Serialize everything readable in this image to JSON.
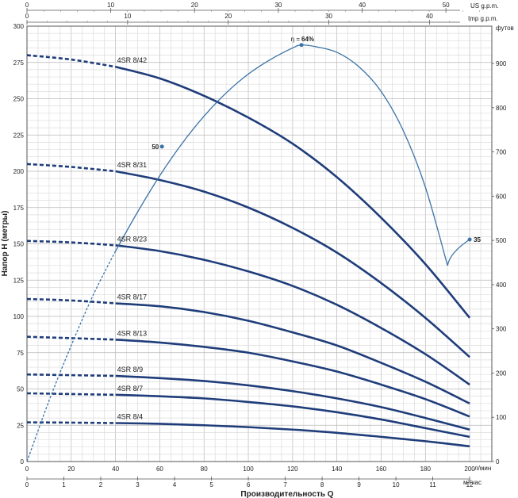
{
  "chart_data": {
    "type": "line",
    "title": "",
    "xlabel": "Производительность Q",
    "ylabel": "Напор Н (метры)",
    "x_unit_primary": "л/мин",
    "x_unit_secondary": "м³/час",
    "x_unit_top_us": "US g.p.m.",
    "x_unit_top_imp": "Imp g.p.m.",
    "y_unit_right": "футов",
    "xlim": [
      0,
      200
    ],
    "ylim": [
      0,
      300
    ],
    "x_ticks_lmin": [
      "0",
      "20",
      "40",
      "60",
      "80",
      "100",
      "120",
      "140",
      "160",
      "180",
      "200"
    ],
    "x_ticks_m3h": [
      "0",
      "1",
      "2",
      "3",
      "4",
      "5",
      "6",
      "7",
      "8",
      "9",
      "10",
      "11",
      "12"
    ],
    "x_ticks_us_gpm": [
      "0",
      "10",
      "20",
      "30",
      "40",
      "50"
    ],
    "x_ticks_imp_gpm": [
      "0",
      "10",
      "20",
      "30",
      "40"
    ],
    "y_ticks_m": [
      "0",
      "25",
      "50",
      "75",
      "100",
      "125",
      "150",
      "175",
      "200",
      "225",
      "250",
      "275",
      "300"
    ],
    "y_ticks_ft": [
      "0",
      "100",
      "200",
      "300",
      "400",
      "500",
      "600",
      "700",
      "800",
      "900"
    ],
    "grid": true,
    "series": [
      {
        "name": "4SR 8/42",
        "dashed_until_x": 40,
        "x": [
          0,
          20,
          40,
          60,
          80,
          100,
          120,
          140,
          160,
          180,
          200
        ],
        "y": [
          280,
          277,
          272,
          264,
          252,
          237,
          219,
          196,
          168,
          136,
          99
        ]
      },
      {
        "name": "4SR 8/31",
        "dashed_until_x": 40,
        "x": [
          0,
          20,
          40,
          60,
          80,
          100,
          120,
          140,
          160,
          180,
          200
        ],
        "y": [
          205,
          203,
          200,
          194,
          186,
          175,
          161,
          144,
          123,
          99,
          72
        ]
      },
      {
        "name": "4SR 8/23",
        "dashed_until_x": 40,
        "x": [
          0,
          20,
          40,
          60,
          80,
          100,
          120,
          140,
          160,
          180,
          200
        ],
        "y": [
          152,
          151,
          149,
          145,
          139,
          131,
          121,
          108,
          92,
          74,
          53
        ]
      },
      {
        "name": "4SR 8/17",
        "dashed_until_x": 40,
        "x": [
          0,
          20,
          40,
          60,
          80,
          100,
          120,
          140,
          160,
          180,
          200
        ],
        "y": [
          112,
          111,
          109,
          107,
          103,
          97,
          89,
          80,
          68,
          55,
          40
        ]
      },
      {
        "name": "4SR 8/13",
        "dashed_until_x": 40,
        "x": [
          0,
          20,
          40,
          60,
          80,
          100,
          120,
          140,
          160,
          180,
          200
        ],
        "y": [
          86,
          85,
          84,
          82,
          79,
          75,
          69,
          62,
          53,
          43,
          31
        ]
      },
      {
        "name": "4SR 8/9",
        "dashed_until_x": 40,
        "x": [
          0,
          20,
          40,
          60,
          80,
          100,
          120,
          140,
          160,
          180,
          200
        ],
        "y": [
          60,
          59.5,
          59,
          57.5,
          55.5,
          52.5,
          48.5,
          43.5,
          37.5,
          30,
          22
        ]
      },
      {
        "name": "4SR 8/7",
        "dashed_until_x": 40,
        "x": [
          0,
          20,
          40,
          60,
          80,
          100,
          120,
          140,
          160,
          180,
          200
        ],
        "y": [
          47,
          46.5,
          46,
          45,
          43.5,
          41,
          38,
          34,
          29,
          23,
          17
        ]
      },
      {
        "name": "4SR 8/4",
        "dashed_until_x": 40,
        "x": [
          0,
          20,
          40,
          60,
          80,
          100,
          120,
          140,
          160,
          180,
          200
        ],
        "y": [
          27,
          26.8,
          26.5,
          26,
          25,
          23.7,
          22,
          19.8,
          17,
          14,
          10.5
        ]
      }
    ],
    "efficiency_curve": {
      "label": "η =",
      "peak_value": "64%",
      "x": [
        0,
        10,
        20,
        30,
        40,
        50,
        60,
        70,
        80,
        90,
        100,
        110,
        120,
        124,
        130,
        140,
        150,
        160,
        170,
        180,
        190,
        200
      ],
      "y": [
        0,
        42,
        80,
        115,
        145,
        172,
        197,
        219,
        238,
        254,
        267,
        277,
        285,
        287,
        286,
        282,
        272,
        255,
        228,
        189,
        135,
        153
      ],
      "dashed_until_x": 35,
      "points": [
        {
          "label": "50",
          "x": 61,
          "y": 217
        },
        {
          "label": "64%",
          "x": 124,
          "y": 287
        },
        {
          "label": "35",
          "x": 200,
          "y": 153
        }
      ]
    }
  }
}
